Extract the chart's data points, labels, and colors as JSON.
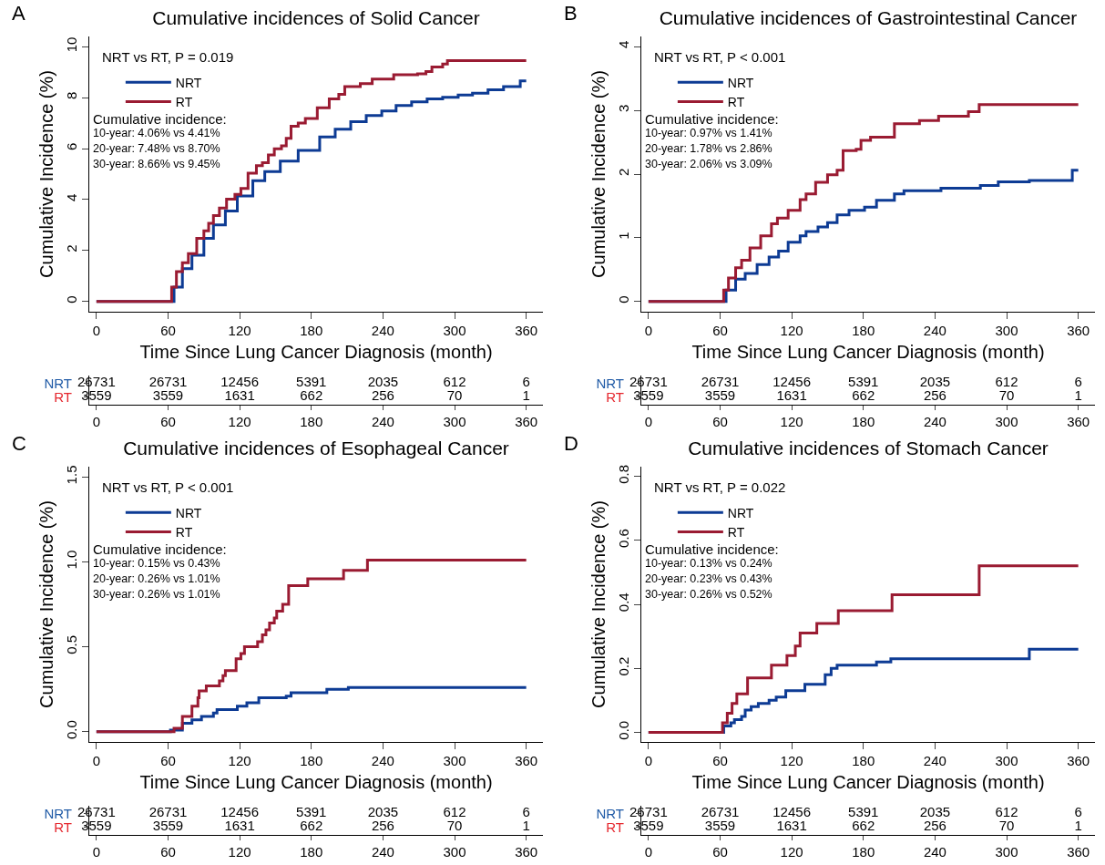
{
  "chart_data": [
    {
      "type": "step",
      "title": "Cumulative incidences of Solid Cancer",
      "xlabel": "Time Since Lung Cancer Diagnosis (month)",
      "ylabel": "Cumulative Incidence (%)",
      "xlim": [
        -6,
        374
      ],
      "xticks": [
        0,
        60,
        120,
        180,
        240,
        300,
        360
      ],
      "ylim": [
        -0.4,
        10.4
      ],
      "yticks": [
        0,
        2,
        4,
        6,
        8,
        10
      ],
      "legend": "top left",
      "annotations": [
        "A",
        "NRT vs RT, P = 0.019",
        "Cumulative incidence:",
        "10-year: 4.06% vs 4.41%",
        "20-year: 7.48% vs 8.70%",
        "30-year: 8.66% vs 9.45%"
      ],
      "series": [
        {
          "name": "NRT",
          "color": "#0d3b94",
          "x": [
            0,
            60,
            65,
            72,
            80,
            90,
            98,
            108,
            118,
            131,
            141,
            154,
            169,
            187,
            200,
            213,
            226,
            239,
            251,
            264,
            277,
            290,
            303,
            315,
            328,
            341,
            355,
            360
          ],
          "values": [
            0,
            0,
            0.57,
            1.29,
            1.82,
            2.48,
            3.01,
            3.55,
            4.14,
            4.74,
            5.1,
            5.51,
            5.93,
            6.46,
            6.76,
            7.06,
            7.3,
            7.48,
            7.69,
            7.83,
            7.95,
            8.01,
            8.1,
            8.17,
            8.31,
            8.43,
            8.66,
            8.66
          ]
        },
        {
          "name": "RT",
          "color": "#9a1b32",
          "x": [
            0,
            60,
            63,
            67,
            72,
            77,
            84,
            90,
            94,
            98,
            103,
            109,
            116,
            121,
            127,
            134,
            139,
            144,
            149,
            155,
            159,
            163,
            169,
            175,
            185,
            195,
            203,
            208,
            221,
            231,
            249,
            269,
            276,
            281,
            290,
            294,
            360
          ],
          "values": [
            0,
            0,
            0.57,
            1.17,
            1.52,
            1.88,
            2.48,
            2.77,
            3.07,
            3.37,
            3.67,
            4.02,
            4.2,
            4.44,
            5.04,
            5.33,
            5.45,
            5.75,
            5.99,
            6.11,
            6.4,
            6.88,
            7.0,
            7.18,
            7.6,
            7.95,
            8.13,
            8.43,
            8.55,
            8.73,
            8.9,
            8.93,
            9.02,
            9.2,
            9.32,
            9.45,
            9.45
          ]
        }
      ]
    },
    {
      "type": "heatmap",
      "categories": [
        "0",
        "60",
        "120",
        "180",
        "240",
        "300",
        "360"
      ],
      "y_categories": [
        "NRT",
        "RT"
      ],
      "colors": [
        "#1f5aa6",
        "#e5262d"
      ],
      "cells": [
        [
          26731,
          26731,
          12456,
          5391,
          2035,
          612,
          6
        ],
        [
          3559,
          3559,
          1631,
          662,
          256,
          70,
          1
        ]
      ],
      "data_labels": true
    },
    {
      "type": "step",
      "title": "Cumulative incidences of Gastrointestinal Cancer",
      "xlabel": "Time Since Lung Cancer Diagnosis (month)",
      "ylabel": "Cumulative Incidence (%)",
      "xlim": [
        -6,
        374
      ],
      "xticks": [
        0,
        60,
        120,
        180,
        240,
        300,
        360
      ],
      "ylim": [
        -0.16,
        4.16
      ],
      "yticks": [
        0,
        1,
        2,
        3,
        4
      ],
      "legend": "top left",
      "annotations": [
        "B",
        "NRT vs RT, P < 0.001",
        "Cumulative incidence:",
        "10-year: 0.97% vs 1.41%",
        "20-year: 1.78% vs 2.86%",
        "30-year: 2.06% vs 3.09%"
      ],
      "series": [
        {
          "name": "NRT",
          "color": "#0d3b94",
          "x": [
            0,
            60,
            65,
            73,
            81,
            91,
            101,
            109,
            117,
            127,
            132,
            142,
            150,
            158,
            168,
            181,
            191,
            206,
            214,
            245,
            278,
            293,
            319,
            355,
            360
          ],
          "values": [
            0,
            0,
            0.18,
            0.35,
            0.44,
            0.58,
            0.7,
            0.79,
            0.93,
            1.03,
            1.1,
            1.17,
            1.24,
            1.36,
            1.43,
            1.48,
            1.59,
            1.69,
            1.74,
            1.78,
            1.82,
            1.88,
            1.9,
            2.06,
            2.06
          ]
        },
        {
          "name": "RT",
          "color": "#9a1b32",
          "x": [
            0,
            60,
            63,
            67,
            73,
            78,
            85,
            94,
            103,
            108,
            117,
            127,
            132,
            140,
            150,
            158,
            163,
            174,
            178,
            186,
            206,
            227,
            243,
            268,
            277,
            360
          ],
          "values": [
            0,
            0,
            0.18,
            0.37,
            0.53,
            0.65,
            0.84,
            1.03,
            1.22,
            1.31,
            1.43,
            1.6,
            1.69,
            1.87,
            1.99,
            2.06,
            2.37,
            2.39,
            2.53,
            2.58,
            2.79,
            2.84,
            2.91,
            2.98,
            3.09,
            3.09
          ]
        }
      ]
    },
    {
      "type": "heatmap",
      "categories": [
        "0",
        "60",
        "120",
        "180",
        "240",
        "300",
        "360"
      ],
      "y_categories": [
        "NRT",
        "RT"
      ],
      "colors": [
        "#1f5aa6",
        "#e5262d"
      ],
      "cells": [
        [
          26731,
          26731,
          12456,
          5391,
          2035,
          612,
          6
        ],
        [
          3559,
          3559,
          1631,
          662,
          256,
          70,
          1
        ]
      ],
      "data_labels": true
    },
    {
      "type": "step",
      "title": "Cumulative incidences of Esophageal Cancer",
      "xlabel": "Time Since Lung Cancer Diagnosis (month)",
      "ylabel": "Cumulative Incidence (%)",
      "xlim": [
        -6,
        374
      ],
      "xticks": [
        0,
        60,
        120,
        180,
        240,
        300,
        360
      ],
      "ylim": [
        -0.06,
        1.56
      ],
      "yticks": [
        {
          "value": 0,
          "label": "0.0"
        },
        {
          "value": 0.5,
          "label": "0.5"
        },
        {
          "value": 1,
          "label": "1.0"
        },
        {
          "value": 1.5,
          "label": "1.5"
        }
      ],
      "legend": "top left",
      "annotations": [
        "C",
        "NRT vs RT, P < 0.001",
        "Cumulative incidence:",
        "10-year: 0.15% vs 0.43%",
        "20-year: 0.26% vs 1.01%",
        "30-year: 0.26% vs 1.01%"
      ],
      "series": [
        {
          "name": "NRT",
          "color": "#0d3b94",
          "x": [
            0,
            62,
            72,
            80,
            88,
            98,
            101,
            118,
            126,
            136,
            159,
            163,
            193,
            211,
            360
          ],
          "values": [
            0,
            0.01,
            0.05,
            0.07,
            0.09,
            0.11,
            0.13,
            0.15,
            0.17,
            0.2,
            0.21,
            0.23,
            0.25,
            0.26,
            0.26
          ]
        },
        {
          "name": "RT",
          "color": "#9a1b32",
          "x": [
            0,
            65,
            72,
            80,
            85,
            86,
            92,
            103,
            106,
            108,
            117,
            121,
            124,
            135,
            139,
            142,
            145,
            149,
            151,
            156,
            161,
            177,
            207,
            227,
            360
          ],
          "values": [
            0,
            0.02,
            0.09,
            0.15,
            0.2,
            0.24,
            0.27,
            0.3,
            0.33,
            0.36,
            0.43,
            0.46,
            0.5,
            0.53,
            0.57,
            0.6,
            0.64,
            0.67,
            0.71,
            0.75,
            0.86,
            0.9,
            0.95,
            1.01,
            1.01
          ]
        }
      ]
    },
    {
      "type": "heatmap",
      "categories": [
        "0",
        "60",
        "120",
        "180",
        "240",
        "300",
        "360"
      ],
      "y_categories": [
        "NRT",
        "RT"
      ],
      "colors": [
        "#1f5aa6",
        "#e5262d"
      ],
      "cells": [
        [
          26731,
          26731,
          12456,
          5391,
          2035,
          612,
          6
        ],
        [
          3559,
          3559,
          1631,
          662,
          256,
          70,
          1
        ]
      ],
      "data_labels": true
    },
    {
      "type": "step",
      "title": "Cumulative incidences of Stomach Cancer",
      "xlabel": "Time Since Lung Cancer Diagnosis (month)",
      "ylabel": "Cumulative Incidence (%)",
      "xlim": [
        -6,
        374
      ],
      "xticks": [
        0,
        60,
        120,
        180,
        240,
        300,
        360
      ],
      "ylim": [
        -0.03,
        0.83
      ],
      "yticks": [
        {
          "value": 0,
          "label": "0.0"
        },
        {
          "value": 0.2,
          "label": "0.2"
        },
        {
          "value": 0.4,
          "label": "0.4"
        },
        {
          "value": 0.6,
          "label": "0.6"
        },
        {
          "value": 0.8,
          "label": "0.8"
        }
      ],
      "legend": "top left",
      "annotations": [
        "D",
        "NRT vs RT, P = 0.022",
        "Cumulative incidence:",
        "10-year: 0.13% vs 0.24%",
        "20-year: 0.23% vs 0.43%",
        "30-year: 0.26% vs 0.52%"
      ],
      "series": [
        {
          "name": "NRT",
          "color": "#0d3b94",
          "x": [
            0,
            60,
            63,
            69,
            72,
            78,
            81,
            86,
            92,
            101,
            107,
            115,
            131,
            148,
            153,
            158,
            191,
            203,
            319,
            360
          ],
          "values": [
            0,
            0,
            0.02,
            0.03,
            0.04,
            0.05,
            0.07,
            0.08,
            0.09,
            0.1,
            0.11,
            0.13,
            0.15,
            0.18,
            0.2,
            0.21,
            0.22,
            0.23,
            0.26,
            0.26
          ]
        },
        {
          "name": "RT",
          "color": "#9a1b32",
          "x": [
            0,
            62,
            66,
            70,
            74,
            83,
            103,
            116,
            123,
            127,
            141,
            159,
            204,
            277,
            360
          ],
          "values": [
            0,
            0.03,
            0.06,
            0.09,
            0.12,
            0.17,
            0.21,
            0.24,
            0.27,
            0.31,
            0.34,
            0.38,
            0.43,
            0.52,
            0.52
          ]
        }
      ]
    },
    {
      "type": "heatmap",
      "categories": [
        "0",
        "60",
        "120",
        "180",
        "240",
        "300",
        "360"
      ],
      "y_categories": [
        "NRT",
        "RT"
      ],
      "colors": [
        "#1f5aa6",
        "#e5262d"
      ],
      "cells": [
        [
          26731,
          26731,
          12456,
          5391,
          2035,
          612,
          6
        ],
        [
          3559,
          3559,
          1631,
          662,
          256,
          70,
          1
        ]
      ],
      "data_labels": true
    }
  ]
}
